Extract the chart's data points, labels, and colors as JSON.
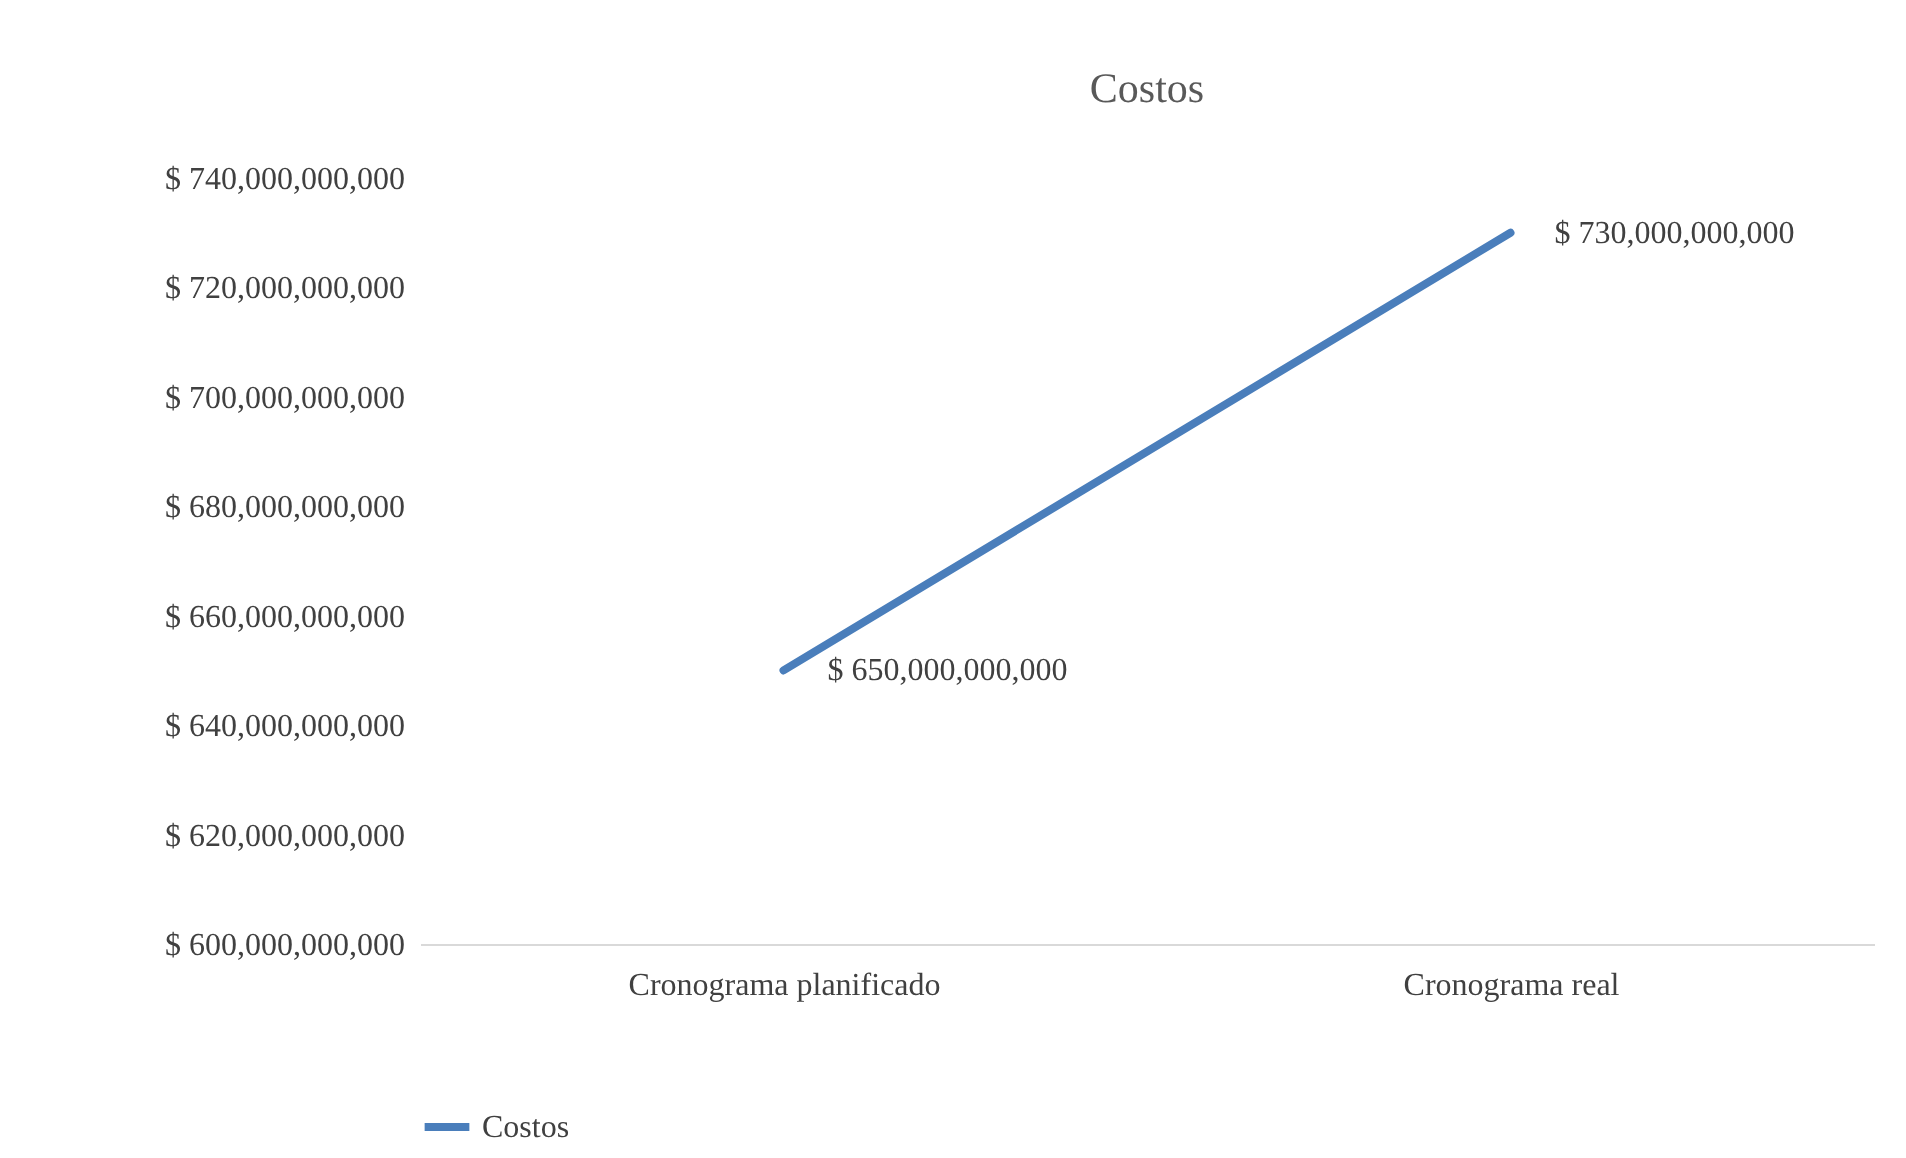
{
  "chart_data": {
    "type": "line",
    "title": "Costos",
    "categories": [
      "Cronograma planificado",
      "Cronograma real"
    ],
    "series": [
      {
        "name": "Costos",
        "color": "#4a7ebb",
        "values": [
          650000000000,
          730000000000
        ],
        "value_labels": [
          "$ 650,000,000,000",
          "$ 730,000,000,000"
        ]
      }
    ],
    "ylim": [
      600000000000,
      740000000000
    ],
    "yticks": [
      {
        "value": 600000000000,
        "label": "$ 600,000,000,000"
      },
      {
        "value": 620000000000,
        "label": "$ 620,000,000,000"
      },
      {
        "value": 640000000000,
        "label": "$ 640,000,000,000"
      },
      {
        "value": 660000000000,
        "label": "$ 660,000,000,000"
      },
      {
        "value": 680000000000,
        "label": "$ 680,000,000,000"
      },
      {
        "value": 700000000000,
        "label": "$ 700,000,000,000"
      },
      {
        "value": 720000000000,
        "label": "$ 720,000,000,000"
      },
      {
        "value": 740000000000,
        "label": "$ 740,000,000,000"
      }
    ],
    "grid": false,
    "legend": "bottom",
    "marker": "none",
    "line_style": "solid"
  }
}
